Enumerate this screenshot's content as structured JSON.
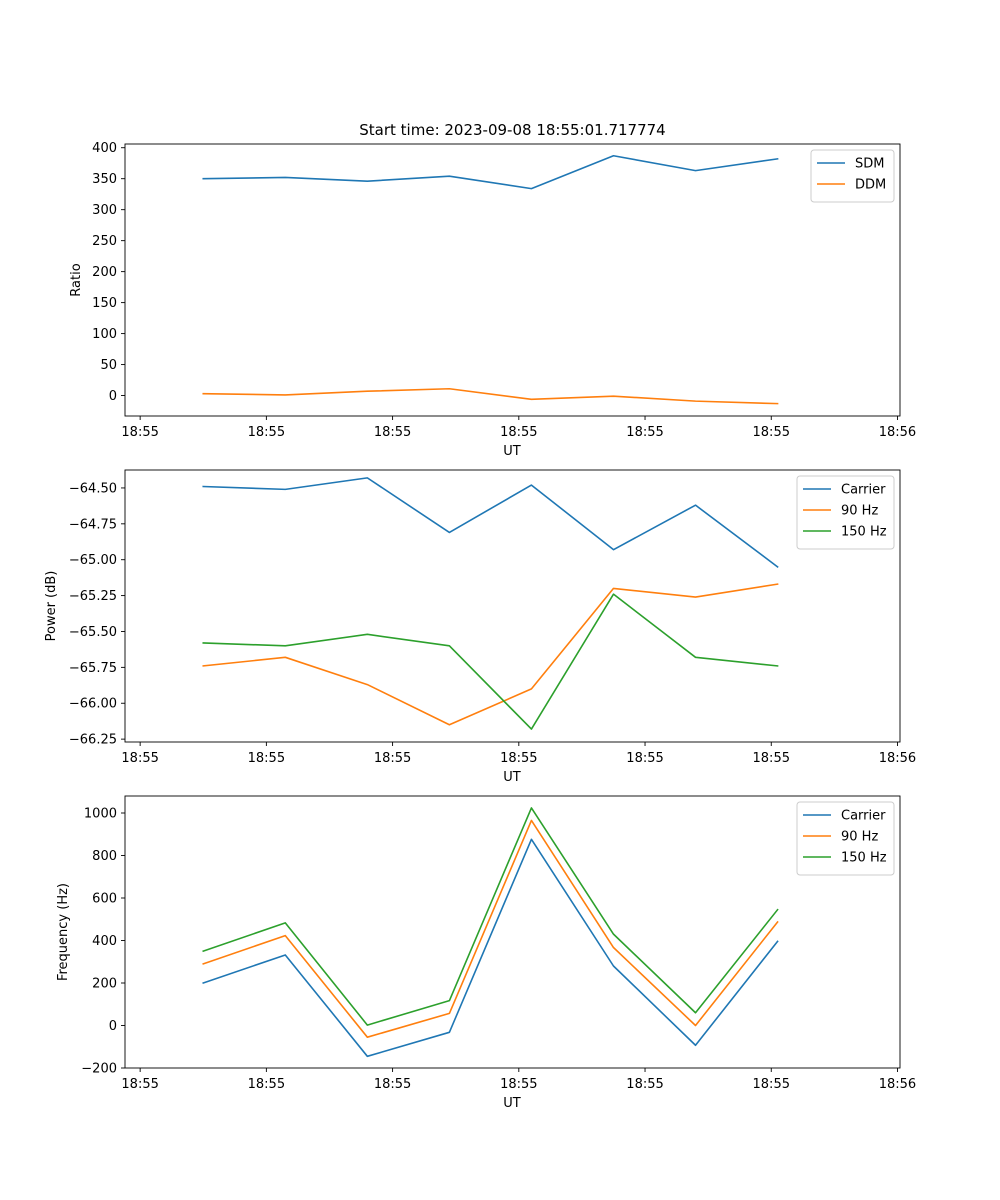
{
  "figure": {
    "title": "Start time: 2023-09-08 18:55:01.717774"
  },
  "colors": {
    "blue": "#1f77b4",
    "orange": "#ff7f0e",
    "green": "#2ca02c"
  },
  "chart_data": [
    {
      "type": "line",
      "title": "Start time: 2023-09-08 18:55:01.717774",
      "xlabel": "UT",
      "ylabel": "Ratio",
      "x_tick_positions": [
        0,
        1,
        2,
        3,
        4,
        5,
        6
      ],
      "x_tick_labels": [
        "18:55",
        "18:55",
        "18:55",
        "18:55",
        "18:55",
        "18:55",
        "18:56"
      ],
      "xlim": [
        -0.12,
        6.02
      ],
      "x": [
        0.5,
        1.15,
        1.8,
        2.45,
        3.1,
        3.75,
        4.4,
        5.05
      ],
      "ylim": [
        -33,
        406
      ],
      "yticks": [
        0,
        50,
        100,
        150,
        200,
        250,
        300,
        350,
        400
      ],
      "ytick_labels": [
        "0",
        "50",
        "100",
        "150",
        "200",
        "250",
        "300",
        "350",
        "400"
      ],
      "legend_position": "top-right",
      "series": [
        {
          "name": "SDM",
          "color": "#1f77b4",
          "values": [
            350,
            352,
            346,
            354,
            334,
            387,
            363,
            382
          ]
        },
        {
          "name": "DDM",
          "color": "#ff7f0e",
          "values": [
            3,
            1,
            7,
            11,
            -6,
            -1,
            -9,
            -13
          ]
        }
      ]
    },
    {
      "type": "line",
      "title": "",
      "xlabel": "UT",
      "ylabel": "Power (dB)",
      "x_tick_positions": [
        0,
        1,
        2,
        3,
        4,
        5,
        6
      ],
      "x_tick_labels": [
        "18:55",
        "18:55",
        "18:55",
        "18:55",
        "18:55",
        "18:55",
        "18:56"
      ],
      "xlim": [
        -0.12,
        6.02
      ],
      "x": [
        0.5,
        1.15,
        1.8,
        2.45,
        3.1,
        3.75,
        4.4,
        5.05
      ],
      "ylim": [
        -66.27,
        -64.375
      ],
      "yticks": [
        -64.5,
        -64.75,
        -65.0,
        -65.25,
        -65.5,
        -65.75,
        -66.0,
        -66.25
      ],
      "ytick_labels": [
        "−64.50",
        "−64.75",
        "−65.00",
        "−65.25",
        "−65.50",
        "−65.75",
        "−66.00",
        "−66.25"
      ],
      "legend_position": "top-right",
      "series": [
        {
          "name": "Carrier",
          "color": "#1f77b4",
          "values": [
            -64.49,
            -64.51,
            -64.43,
            -64.81,
            -64.48,
            -64.93,
            -64.62,
            -65.05
          ]
        },
        {
          "name": "90 Hz",
          "color": "#ff7f0e",
          "values": [
            -65.74,
            -65.68,
            -65.87,
            -66.15,
            -65.9,
            -65.2,
            -65.26,
            -65.17
          ]
        },
        {
          "name": "150 Hz",
          "color": "#2ca02c",
          "values": [
            -65.58,
            -65.6,
            -65.52,
            -65.6,
            -66.18,
            -65.24,
            -65.68,
            -65.74
          ]
        }
      ]
    },
    {
      "type": "line",
      "title": "",
      "xlabel": "UT",
      "ylabel": "Frequency (Hz)",
      "x_tick_positions": [
        0,
        1,
        2,
        3,
        4,
        5,
        6
      ],
      "x_tick_labels": [
        "18:55",
        "18:55",
        "18:55",
        "18:55",
        "18:55",
        "18:55",
        "18:56"
      ],
      "xlim": [
        -0.12,
        6.02
      ],
      "x": [
        0.5,
        1.15,
        1.8,
        2.45,
        3.1,
        3.75,
        4.4,
        5.05
      ],
      "ylim": [
        -200,
        1080
      ],
      "yticks": [
        -200,
        0,
        200,
        400,
        600,
        800,
        1000
      ],
      "ytick_labels": [
        "−200",
        "0",
        "200",
        "400",
        "600",
        "800",
        "1000"
      ],
      "legend_position": "top-right",
      "series": [
        {
          "name": "Carrier",
          "color": "#1f77b4",
          "values": [
            200,
            332,
            -145,
            -32,
            876,
            280,
            -93,
            396
          ]
        },
        {
          "name": "90 Hz",
          "color": "#ff7f0e",
          "values": [
            290,
            423,
            -55,
            57,
            965,
            367,
            0,
            487
          ]
        },
        {
          "name": "150 Hz",
          "color": "#2ca02c",
          "values": [
            350,
            483,
            2,
            117,
            1024,
            430,
            60,
            545
          ]
        }
      ]
    }
  ]
}
